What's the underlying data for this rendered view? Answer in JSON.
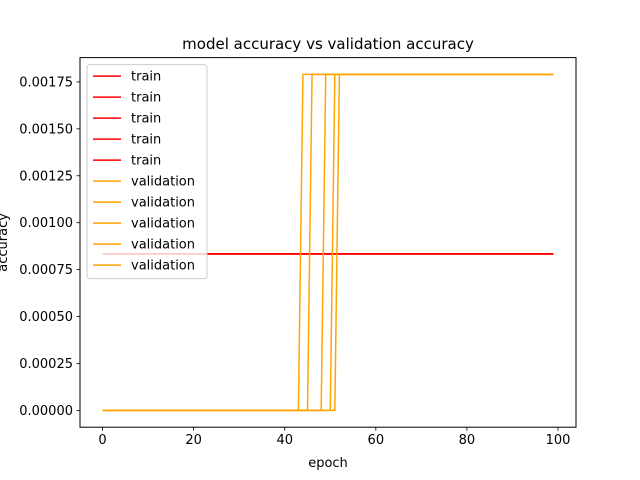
{
  "chart_data": {
    "type": "line",
    "title": "model accuracy vs validation accuracy",
    "xlabel": "epoch",
    "ylabel": "accuracy",
    "xlim": [
      -4.95,
      103.95
    ],
    "ylim": [
      -8.95e-05,
      0.0018795
    ],
    "xticks": [
      0,
      20,
      40,
      60,
      80,
      100
    ],
    "xtick_labels": [
      "0",
      "20",
      "40",
      "60",
      "80",
      "100"
    ],
    "yticks": [
      0,
      0.00025,
      0.0005,
      0.00075,
      0.001,
      0.00125,
      0.0015,
      0.00175
    ],
    "ytick_labels": [
      "0.00000",
      "0.00025",
      "0.00050",
      "0.00075",
      "0.00100",
      "0.00125",
      "0.00150",
      "0.00175"
    ],
    "grid": false,
    "legend_position": "upper-left",
    "colors": {
      "train": "#ff0000",
      "validation": "#ffa500"
    },
    "series": [
      {
        "name": "train",
        "color": "#ff0000",
        "x": [
          0,
          99
        ],
        "y": [
          0.000834,
          0.000834
        ]
      },
      {
        "name": "train",
        "color": "#ff0000",
        "x": [
          0,
          99
        ],
        "y": [
          0.000834,
          0.000834
        ]
      },
      {
        "name": "train",
        "color": "#ff0000",
        "x": [
          0,
          99
        ],
        "y": [
          0.000834,
          0.000834
        ]
      },
      {
        "name": "train",
        "color": "#ff0000",
        "x": [
          0,
          99
        ],
        "y": [
          0.000834,
          0.000834
        ]
      },
      {
        "name": "train",
        "color": "#ff0000",
        "x": [
          0,
          99
        ],
        "y": [
          0.000834,
          0.000834
        ]
      },
      {
        "name": "validation",
        "color": "#ffa500",
        "x": [
          0,
          43,
          44,
          99
        ],
        "y": [
          0,
          0,
          0.00179,
          0.00179
        ]
      },
      {
        "name": "validation",
        "color": "#ffa500",
        "x": [
          0,
          45,
          46,
          99
        ],
        "y": [
          0,
          0,
          0.00179,
          0.00179
        ]
      },
      {
        "name": "validation",
        "color": "#ffa500",
        "x": [
          0,
          48,
          49,
          99
        ],
        "y": [
          0,
          0,
          0.00179,
          0.00179
        ]
      },
      {
        "name": "validation",
        "color": "#ffa500",
        "x": [
          0,
          50,
          51,
          99
        ],
        "y": [
          0,
          0,
          0.00179,
          0.00179
        ]
      },
      {
        "name": "validation",
        "color": "#ffa500",
        "x": [
          0,
          51,
          52,
          99
        ],
        "y": [
          0,
          0,
          0.00179,
          0.00179
        ]
      }
    ]
  }
}
